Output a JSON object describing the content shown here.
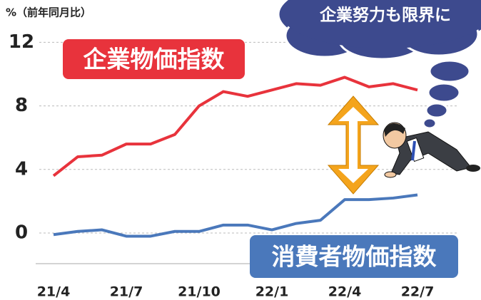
{
  "chart_data": {
    "type": "line",
    "y_label": "%（前年同月比）",
    "annotation": "企業努力も限界に",
    "categories": [
      "21/4",
      null,
      null,
      "21/7",
      null,
      null,
      "21/10",
      null,
      null,
      "22/1",
      null,
      null,
      "22/4",
      null,
      null,
      "22/7"
    ],
    "series": [
      {
        "name": "企業物価指数",
        "color": "#e8333c",
        "values": [
          3.6,
          4.8,
          4.9,
          5.6,
          5.6,
          6.2,
          8.0,
          8.9,
          8.6,
          9.0,
          9.4,
          9.3,
          9.8,
          9.2,
          9.4,
          9.0
        ]
      },
      {
        "name": "消費者物価指数",
        "color": "#4a78bb",
        "values": [
          -0.1,
          0.1,
          0.2,
          -0.2,
          -0.2,
          0.1,
          0.1,
          0.5,
          0.5,
          0.2,
          0.6,
          0.8,
          2.1,
          2.1,
          2.2,
          2.4
        ]
      }
    ],
    "ylim": [
      -1.5,
      12
    ],
    "yticks": [
      0,
      4,
      8,
      12
    ],
    "grid": true
  }
}
